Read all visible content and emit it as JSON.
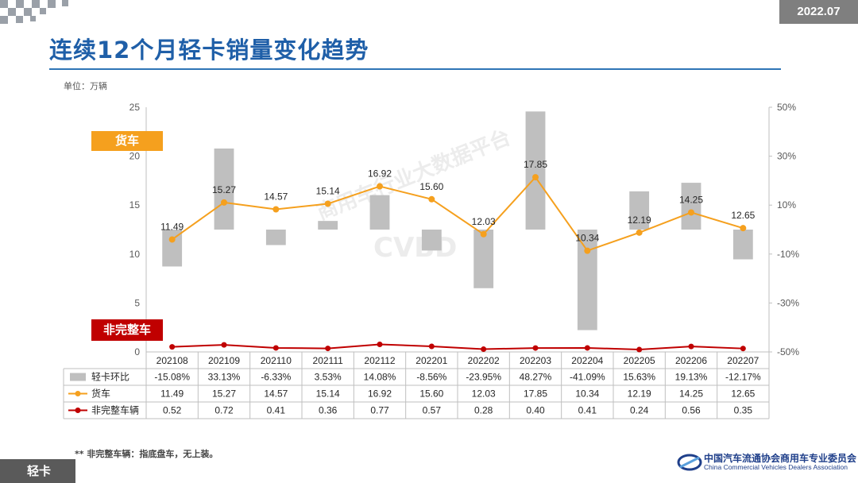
{
  "header": {
    "date": "2022.07",
    "title": "连续12个月轻卡销量变化趋势",
    "unit_label": "单位：万辆"
  },
  "tags": {
    "truck": "货车",
    "chassis": "非完整车"
  },
  "footnote": "** 非完整车辆：指底盘车，无上装。",
  "section_tag": "轻卡",
  "org": {
    "name_cn": "中国汽车流通协会商用车专业委员会",
    "name_en": "China Commercial Vehicles Dealers Association"
  },
  "watermark": {
    "brand": "CVBD",
    "text": "商用车行业大数据平台"
  },
  "colors": {
    "title": "#1f5fa8",
    "bar": "#bfbfbf",
    "truck": "#f5a01e",
    "chassis": "#c00000",
    "grid": "#d9d9d9",
    "badge": "#7f7f7f"
  },
  "chart_data": {
    "type": "bar+line",
    "categories": [
      "202108",
      "202109",
      "202110",
      "202111",
      "202112",
      "202201",
      "202202",
      "202203",
      "202204",
      "202205",
      "202206",
      "202207"
    ],
    "y_left_ticks": [
      "0",
      "5",
      "10",
      "15",
      "20",
      "25"
    ],
    "y_right_ticks": [
      "-50%",
      "-30%",
      "-10%",
      "10%",
      "30%",
      "50%"
    ],
    "ylim_left": [
      0,
      25
    ],
    "ylim_right": [
      -50,
      50
    ],
    "grid": false,
    "series": [
      {
        "name": "轻卡环比",
        "type": "bar",
        "axis": "right",
        "color": "#bfbfbf",
        "values": [
          -15.08,
          33.13,
          -6.33,
          3.53,
          14.08,
          -8.56,
          -23.95,
          48.27,
          -41.09,
          15.63,
          19.13,
          -12.17
        ],
        "labels": [
          "-15.08%",
          "33.13%",
          "-6.33%",
          "3.53%",
          "14.08%",
          "-8.56%",
          "-23.95%",
          "48.27%",
          "-41.09%",
          "15.63%",
          "19.13%",
          "-12.17%"
        ]
      },
      {
        "name": "货车",
        "type": "line",
        "axis": "left",
        "color": "#f5a01e",
        "values": [
          11.49,
          15.27,
          14.57,
          15.14,
          16.92,
          15.6,
          12.03,
          17.85,
          10.34,
          12.19,
          14.25,
          12.65
        ],
        "labels": [
          "11.49",
          "15.27",
          "14.57",
          "15.14",
          "16.92",
          "15.60",
          "12.03",
          "17.85",
          "10.34",
          "12.19",
          "14.25",
          "12.65"
        ]
      },
      {
        "name": "非完整车辆",
        "type": "line",
        "axis": "left",
        "color": "#c00000",
        "values": [
          0.52,
          0.72,
          0.41,
          0.36,
          0.77,
          0.57,
          0.28,
          0.4,
          0.41,
          0.24,
          0.56,
          0.35
        ],
        "labels": [
          "0.52",
          "0.72",
          "0.41",
          "0.36",
          "0.77",
          "0.57",
          "0.28",
          "0.40",
          "0.41",
          "0.24",
          "0.56",
          "0.35"
        ]
      }
    ]
  }
}
